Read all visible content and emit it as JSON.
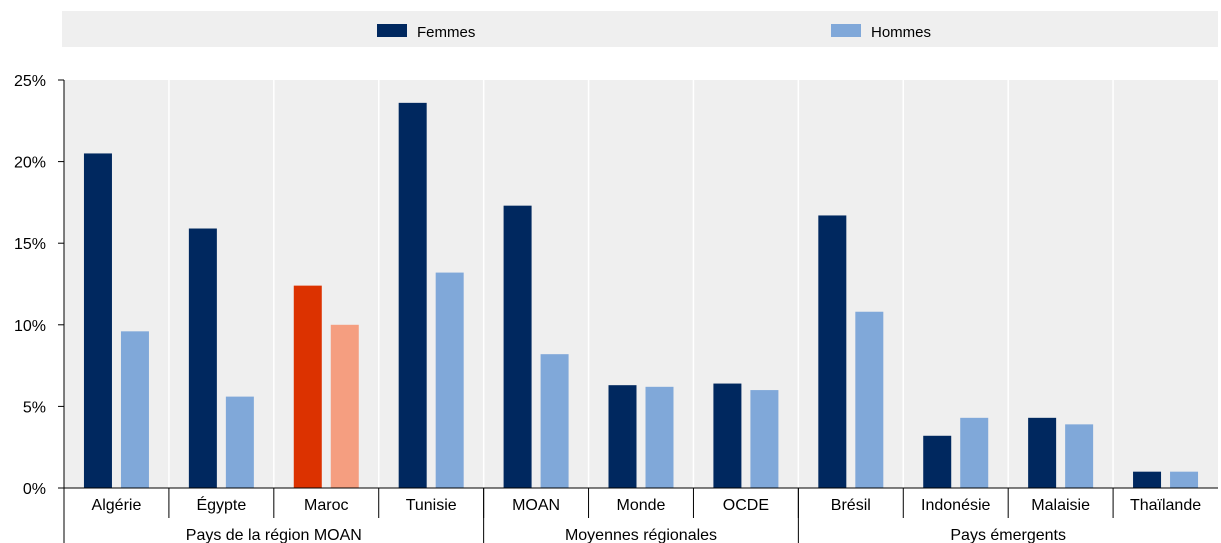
{
  "chart_data": {
    "type": "bar",
    "categories": [
      "Algérie",
      "Égypte",
      "Maroc",
      "Tunisie",
      "MOAN",
      "Monde",
      "OCDE",
      "Brésil",
      "Indonésie",
      "Malaisie",
      "Thaïlande"
    ],
    "groups": [
      {
        "label": "Pays de la région MOAN",
        "start": 0,
        "end": 3
      },
      {
        "label": "Moyennes régionales",
        "start": 4,
        "end": 6
      },
      {
        "label": "Pays émergents",
        "start": 7,
        "end": 10
      }
    ],
    "series": [
      {
        "name": "Femmes",
        "color": "#00285f",
        "highlight_color": "#dc3200",
        "values": [
          20.5,
          15.9,
          12.4,
          23.6,
          17.3,
          6.3,
          6.4,
          16.7,
          3.2,
          4.3,
          1.0
        ]
      },
      {
        "name": "Hommes",
        "color": "#80a8d9",
        "highlight_color": "#f59e80",
        "values": [
          9.6,
          5.6,
          10.0,
          13.2,
          8.2,
          6.2,
          6.0,
          10.8,
          4.3,
          3.9,
          1.0
        ]
      }
    ],
    "highlight_category": "Maroc",
    "ylim": [
      0,
      25
    ],
    "yticks": [
      0,
      5,
      10,
      15,
      20,
      25
    ],
    "ytick_labels": [
      "0%",
      "5%",
      "10%",
      "15%",
      "20%",
      "25%"
    ],
    "grid": "vertical",
    "legend_position": "top",
    "plot_background": "#efefef",
    "title": "",
    "xlabel": "",
    "ylabel": ""
  }
}
